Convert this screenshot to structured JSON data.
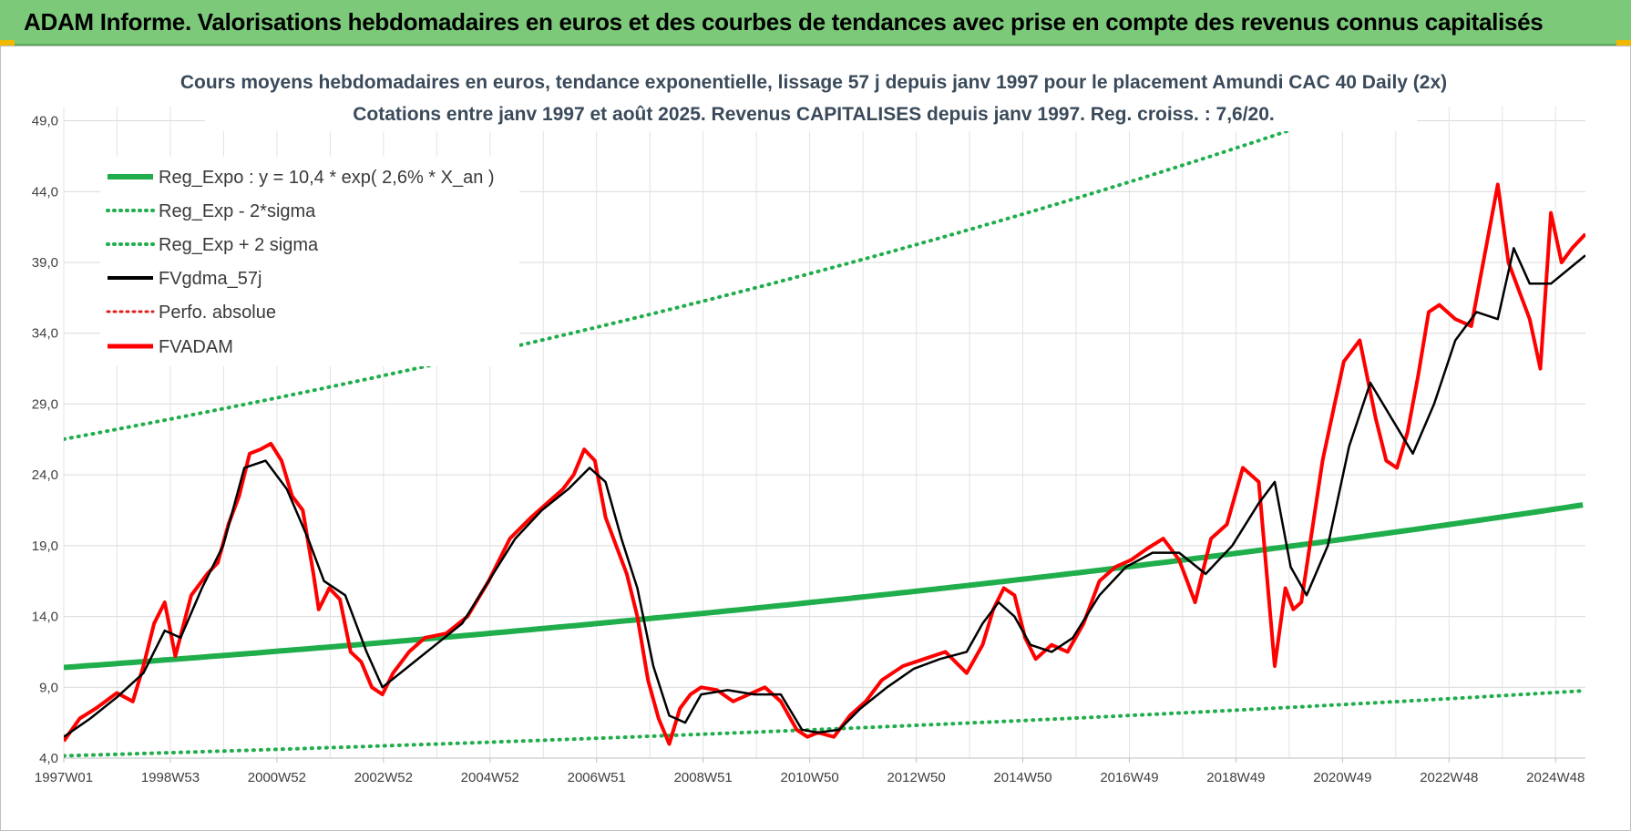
{
  "header": {
    "title": "ADAM Informe. Valorisations hebdomadaires en euros et des courbes de tendances avec prise en compte des revenus connus capitalisés"
  },
  "colors": {
    "banner": "#7cc97a",
    "reg_expo": "#1fae4b",
    "sigma": "#1fae4b",
    "fvgdma": "#000000",
    "fvadam": "#ff0000",
    "perfo": "#e02020"
  },
  "chart_data": {
    "type": "line",
    "title": [
      "Cours moyens hebdomadaires en euros, tendance exponentielle, lissage 57 j depuis janv 1997 pour le placement Amundi CAC 40 Daily (2x)",
      "Cotations entre janv 1997 et août 2025. Revenus CAPITALISES depuis janv 1997. Reg. croiss. : 7,6/20."
    ],
    "x_ticks": [
      "1997W01",
      "1998W53",
      "2000W52",
      "2002W52",
      "2004W52",
      "2006W51",
      "2008W51",
      "2010W50",
      "2012W50",
      "2014W50",
      "2016W49",
      "2018W49",
      "2020W49",
      "2022W48",
      "2024W48"
    ],
    "y_ticks": [
      "4,0",
      "9,0",
      "14,0",
      "19,0",
      "24,0",
      "29,0",
      "34,0",
      "39,0",
      "44,0",
      "49,0"
    ],
    "x_range": [
      1997.0,
      2025.65
    ],
    "ylim": [
      4,
      50
    ],
    "grid": true,
    "legend_position": "top-left",
    "legend": [
      {
        "label": "Reg_Expo : y = 10,4 * exp( 2,6% *  X_an )",
        "style": "solid-thick",
        "color": "#1fae4b"
      },
      {
        "label": "Reg_Exp - 2*sigma",
        "style": "dotted",
        "color": "#1fae4b"
      },
      {
        "label": "Reg_Exp + 2 sigma",
        "style": "dotted",
        "color": "#1fae4b"
      },
      {
        "label": "FVgdma_57j",
        "style": "solid",
        "color": "#000000"
      },
      {
        "label": "Perfo. absolue",
        "style": "dotted-thin",
        "color": "#e02020"
      },
      {
        "label": "FVADAM",
        "style": "solid-thick",
        "color": "#ff0000"
      }
    ],
    "reg_expo": {
      "a": 10.4,
      "rate": 0.026,
      "sigma_low_factor": 0.4,
      "sigma_high_factor": 2.55
    },
    "series": [
      {
        "name": "FVADAM",
        "x": [
          1997.0,
          1997.3,
          1997.6,
          1998.0,
          1998.3,
          1998.5,
          1998.7,
          1998.9,
          1999.1,
          1999.4,
          1999.7,
          1999.9,
          2000.1,
          2000.3,
          2000.5,
          2000.7,
          2000.9,
          2001.1,
          2001.3,
          2001.5,
          2001.7,
          2001.8,
          2002.0,
          2002.2,
          2002.4,
          2002.6,
          2002.8,
          2003.0,
          2003.2,
          2003.5,
          2003.8,
          2004.2,
          2004.6,
          2005.0,
          2005.4,
          2005.8,
          2006.1,
          2006.4,
          2006.6,
          2006.8,
          2007.0,
          2007.2,
          2007.4,
          2007.6,
          2007.8,
          2008.0,
          2008.2,
          2008.4,
          2008.6,
          2008.8,
          2009.0,
          2009.3,
          2009.6,
          2009.9,
          2010.2,
          2010.5,
          2010.8,
          2011.0,
          2011.2,
          2011.5,
          2011.8,
          2012.1,
          2012.4,
          2012.8,
          2013.2,
          2013.6,
          2014.0,
          2014.3,
          2014.5,
          2014.7,
          2014.9,
          2015.1,
          2015.3,
          2015.6,
          2015.9,
          2016.2,
          2016.5,
          2016.8,
          2017.1,
          2017.4,
          2017.7,
          2018.0,
          2018.3,
          2018.6,
          2018.9,
          2019.2,
          2019.5,
          2019.8,
          2020.0,
          2020.15,
          2020.3,
          2020.5,
          2020.7,
          2020.9,
          2021.1,
          2021.4,
          2021.7,
          2021.9,
          2022.1,
          2022.3,
          2022.5,
          2022.7,
          2022.9,
          2023.2,
          2023.5,
          2023.8,
          2024.0,
          2024.2,
          2024.4,
          2024.6,
          2024.8,
          2025.0,
          2025.2,
          2025.4,
          2025.65
        ],
        "y": [
          5.2,
          6.8,
          7.5,
          8.6,
          8.0,
          10.5,
          13.5,
          15.0,
          11.2,
          15.5,
          17.0,
          17.8,
          20.5,
          22.5,
          25.5,
          25.8,
          26.2,
          25.0,
          22.5,
          21.5,
          17.0,
          14.5,
          16.0,
          15.2,
          11.5,
          10.8,
          9.0,
          8.5,
          10.0,
          11.5,
          12.5,
          12.8,
          14.0,
          16.5,
          19.5,
          21.0,
          22.0,
          23.0,
          24.0,
          25.8,
          25.0,
          21.0,
          19.0,
          17.0,
          14.0,
          9.5,
          6.8,
          5.0,
          7.5,
          8.5,
          9.0,
          8.8,
          8.0,
          8.5,
          9.0,
          8.0,
          6.0,
          5.5,
          5.8,
          5.5,
          7.0,
          8.0,
          9.5,
          10.5,
          11.0,
          11.5,
          10.0,
          12.0,
          14.5,
          16.0,
          15.5,
          12.5,
          11.0,
          12.0,
          11.5,
          13.5,
          16.5,
          17.5,
          18.0,
          18.8,
          19.5,
          18.0,
          15.0,
          19.5,
          20.5,
          24.5,
          23.5,
          10.5,
          16.0,
          14.5,
          15.0,
          20.0,
          25.0,
          28.5,
          32.0,
          33.5,
          28.0,
          25.0,
          24.5,
          27.0,
          31.0,
          35.5,
          36.0,
          35.0,
          34.5,
          40.5,
          44.5,
          39.0,
          37.0,
          35.0,
          31.5,
          42.5,
          39.0,
          40.0,
          41.0
        ]
      },
      {
        "name": "FVgdma_57j",
        "x": [
          1997.0,
          1997.5,
          1998.0,
          1998.5,
          1998.9,
          1999.2,
          1999.6,
          2000.0,
          2000.4,
          2000.8,
          2001.2,
          2001.6,
          2001.9,
          2002.3,
          2002.7,
          2003.0,
          2003.5,
          2004.0,
          2004.5,
          2005.0,
          2005.5,
          2006.0,
          2006.5,
          2006.9,
          2007.2,
          2007.5,
          2007.8,
          2008.1,
          2008.4,
          2008.7,
          2009.0,
          2009.5,
          2010.0,
          2010.5,
          2010.9,
          2011.2,
          2011.6,
          2012.0,
          2012.5,
          2013.0,
          2013.5,
          2014.0,
          2014.3,
          2014.6,
          2014.9,
          2015.2,
          2015.6,
          2016.0,
          2016.5,
          2017.0,
          2017.5,
          2018.0,
          2018.5,
          2019.0,
          2019.5,
          2019.8,
          2020.1,
          2020.4,
          2020.8,
          2021.2,
          2021.6,
          2022.0,
          2022.4,
          2022.8,
          2023.2,
          2023.6,
          2024.0,
          2024.3,
          2024.6,
          2025.0,
          2025.65
        ],
        "y": [
          5.5,
          6.8,
          8.3,
          10.0,
          13.0,
          12.5,
          16.0,
          19.0,
          24.5,
          25.0,
          23.0,
          19.5,
          16.5,
          15.5,
          11.5,
          9.0,
          10.5,
          12.0,
          13.5,
          16.5,
          19.5,
          21.5,
          23.0,
          24.5,
          23.5,
          19.5,
          16.0,
          10.5,
          7.0,
          6.5,
          8.5,
          8.8,
          8.5,
          8.5,
          6.0,
          5.8,
          6.0,
          7.5,
          9.0,
          10.3,
          11.0,
          11.5,
          13.5,
          15.0,
          14.0,
          12.0,
          11.5,
          12.5,
          15.5,
          17.5,
          18.5,
          18.5,
          17.0,
          19.0,
          22.0,
          23.5,
          17.5,
          15.5,
          19.0,
          26.0,
          30.5,
          28.0,
          25.5,
          29.0,
          33.5,
          35.5,
          35.0,
          40.0,
          37.5,
          37.5,
          39.5
        ]
      }
    ]
  }
}
